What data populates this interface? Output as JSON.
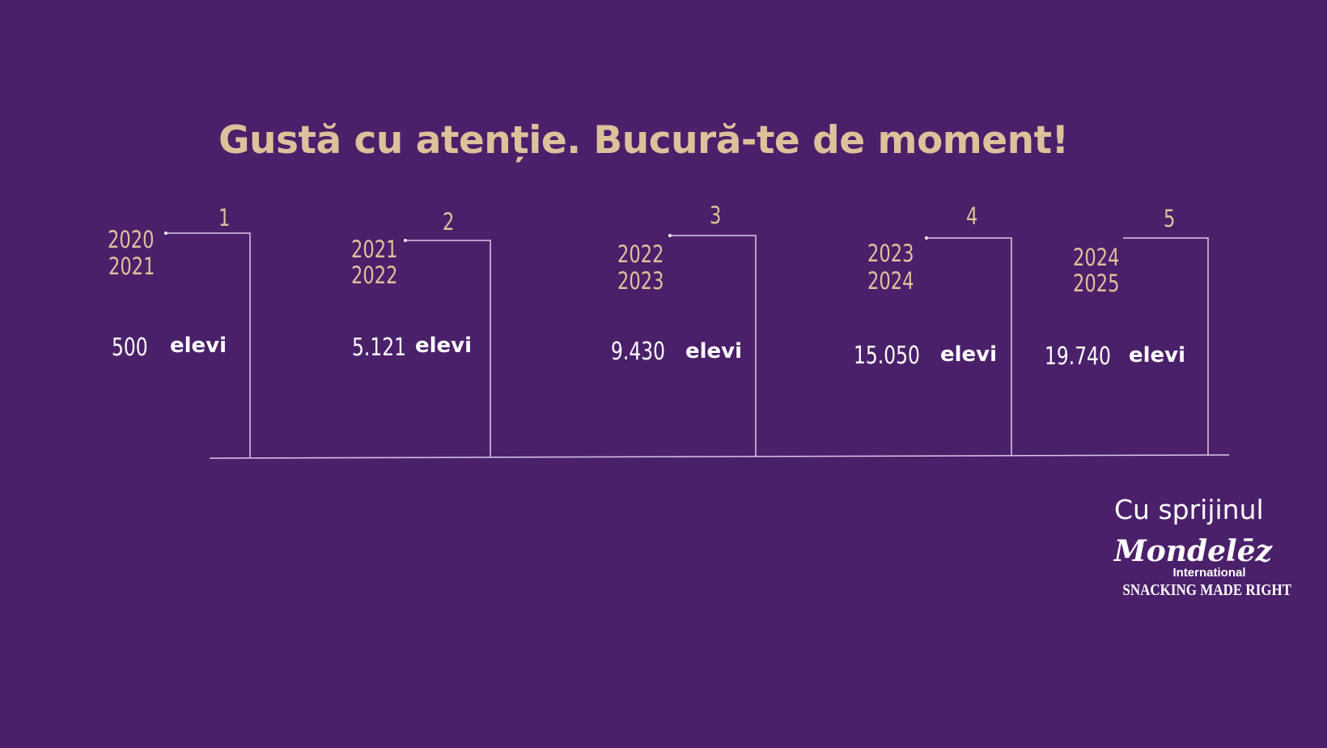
{
  "title": "Gustă cu atenție. Bucură-te de moment!",
  "colors": {
    "background": "#4b206a",
    "accent": "#dcc19b",
    "text": "#ffffff"
  },
  "items": [
    {
      "number": "1",
      "year_start": "2020",
      "year_end": "2021",
      "value": "500",
      "unit": "elevi"
    },
    {
      "number": "2",
      "year_start": "2021",
      "year_end": "2022",
      "value": "5.121",
      "unit": "elevi"
    },
    {
      "number": "3",
      "year_start": "2022",
      "year_end": "2023",
      "value": "9.430",
      "unit": "elevi"
    },
    {
      "number": "4",
      "year_start": "2023",
      "year_end": "2024",
      "value": "15.050",
      "unit": "elevi"
    },
    {
      "number": "5",
      "year_start": "2024",
      "year_end": "2025",
      "value": "19.740",
      "unit": "elevi"
    }
  ],
  "support": {
    "label": "Cu sprijinul",
    "logo_name": "Mondelēz",
    "logo_sub": "International",
    "tagline": "SNACKING MADE RIGHT"
  }
}
